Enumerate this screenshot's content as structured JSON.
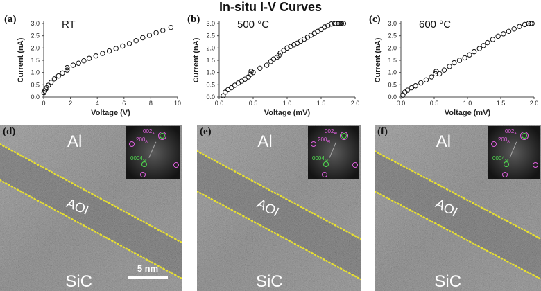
{
  "figure_title": "In-situ I-V Curves",
  "chart_data": [
    {
      "type": "scatter",
      "panel": "(a)",
      "condition": "RT",
      "xlabel": "Voltage (V)",
      "ylabel": "Current (nA)",
      "xlim": [
        0,
        10
      ],
      "ylim": [
        0,
        3.0
      ],
      "xticks": [
        "0",
        "2",
        "4",
        "6",
        "8",
        "10"
      ],
      "yticks": [
        "0.0",
        "0.5",
        "1.0",
        "1.5",
        "2.0",
        "2.5",
        "3.0"
      ],
      "x": [
        0.02,
        0.08,
        0.15,
        0.22,
        0.35,
        0.55,
        0.8,
        1.1,
        1.4,
        1.75,
        1.75,
        2.2,
        2.6,
        3.0,
        3.4,
        3.9,
        4.4,
        4.9,
        5.4,
        5.9,
        6.4,
        6.9,
        7.4,
        7.9,
        8.4,
        8.9,
        9.5
      ],
      "y": [
        0.18,
        0.25,
        0.32,
        0.38,
        0.48,
        0.6,
        0.74,
        0.86,
        0.98,
        1.1,
        1.2,
        1.3,
        1.38,
        1.48,
        1.58,
        1.68,
        1.78,
        1.88,
        1.98,
        2.08,
        2.18,
        2.3,
        2.42,
        2.52,
        2.62,
        2.72,
        2.84
      ]
    },
    {
      "type": "scatter",
      "panel": "(b)",
      "condition": "500 °C",
      "xlabel": "Voltage (mV)",
      "ylabel": "Current (nA)",
      "xlim": [
        0,
        2.0
      ],
      "ylim": [
        0,
        3.0
      ],
      "xticks": [
        "0.0",
        "0.5",
        "1.0",
        "1.5",
        "2.0"
      ],
      "yticks": [
        "0.0",
        "0.5",
        "1.0",
        "1.5",
        "2.0",
        "2.5",
        "3.0"
      ],
      "x": [
        0.06,
        0.09,
        0.13,
        0.18,
        0.23,
        0.28,
        0.33,
        0.38,
        0.43,
        0.46,
        0.47,
        0.5,
        0.6,
        0.7,
        0.76,
        0.8,
        0.85,
        0.88,
        0.9,
        0.95,
        1.0,
        1.05,
        1.1,
        1.15,
        1.2,
        1.25,
        1.3,
        1.35,
        1.4,
        1.45,
        1.5,
        1.55,
        1.6,
        1.65,
        1.7,
        1.72,
        1.75,
        1.78,
        1.8,
        1.83
      ],
      "y": [
        0.05,
        0.2,
        0.3,
        0.38,
        0.48,
        0.57,
        0.65,
        0.73,
        0.82,
        0.93,
        1.05,
        1.0,
        1.18,
        1.3,
        1.45,
        1.55,
        1.62,
        1.7,
        1.8,
        1.9,
        2.0,
        2.06,
        2.13,
        2.2,
        2.28,
        2.36,
        2.44,
        2.52,
        2.6,
        2.68,
        2.76,
        2.86,
        2.92,
        2.98,
        3.0,
        3.0,
        3.0,
        3.0,
        3.0,
        3.0
      ]
    },
    {
      "type": "scatter",
      "panel": "(c)",
      "condition": "600 °C",
      "xlabel": "Voltage (mV)",
      "ylabel": "Current (nA)",
      "xlim": [
        0,
        2.0
      ],
      "ylim": [
        0,
        3.0
      ],
      "xticks": [
        "0.0",
        "0.5",
        "1.0",
        "1.5",
        "2.0"
      ],
      "yticks": [
        "0.0",
        "0.5",
        "1.0",
        "1.5",
        "2.0",
        "2.5",
        "3.0"
      ],
      "x": [
        0.03,
        0.06,
        0.1,
        0.16,
        0.22,
        0.3,
        0.38,
        0.46,
        0.52,
        0.53,
        0.58,
        0.65,
        0.73,
        0.8,
        0.88,
        0.96,
        1.03,
        1.1,
        1.18,
        1.24,
        1.3,
        1.38,
        1.46,
        1.54,
        1.62,
        1.7,
        1.78,
        1.86,
        1.92,
        1.95,
        1.97
      ],
      "y": [
        0.08,
        0.2,
        0.28,
        0.38,
        0.46,
        0.58,
        0.7,
        0.82,
        0.95,
        1.05,
        0.95,
        1.1,
        1.25,
        1.4,
        1.5,
        1.6,
        1.72,
        1.85,
        1.98,
        2.1,
        2.22,
        2.35,
        2.48,
        2.58,
        2.68,
        2.78,
        2.88,
        2.96,
        3.0,
        3.0,
        3.0
      ]
    }
  ],
  "tem_panels": [
    {
      "panel": "(d)",
      "top_label": "Al",
      "interface_label": "AOI",
      "bottom_label": "SiC",
      "inset": {
        "al_spot": "002",
        "al_sub": "Al",
        "al_spot2": "200",
        "al_sub2": "Al",
        "sic_spot": "0004",
        "sic_sub": "SiC"
      },
      "scale_bar": "5 nm"
    },
    {
      "panel": "(e)",
      "top_label": "Al",
      "interface_label": "AOI",
      "bottom_label": "SiC",
      "inset": {
        "al_spot": "002",
        "al_sub": "Al",
        "al_spot2": "200",
        "al_sub2": "Al",
        "sic_spot": "0004",
        "sic_sub": "SiC"
      }
    },
    {
      "panel": "(f)",
      "top_label": "Al",
      "interface_label": "AOI",
      "bottom_label": "SiC",
      "inset": {
        "al_spot": "002",
        "al_sub": "Al",
        "al_spot2": "200",
        "al_sub2": "Al",
        "sic_spot": "0004",
        "sic_sub": "SiC"
      }
    }
  ],
  "colors": {
    "marker_stroke": "#111111",
    "interface_dots": "#e8e030",
    "inset_al_circle": "#e060e0",
    "inset_sic_circle": "#50e050"
  }
}
